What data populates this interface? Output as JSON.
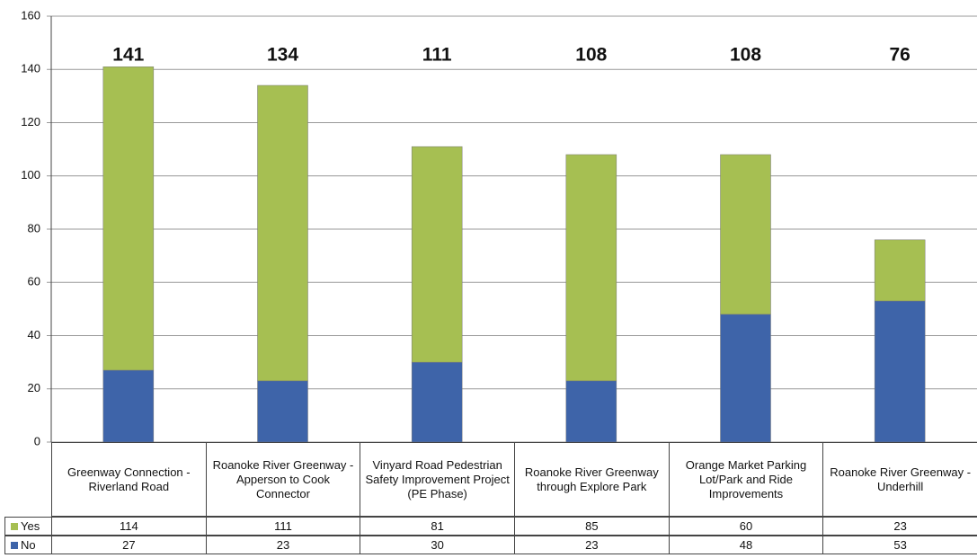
{
  "chart_data": {
    "type": "stacked_bar",
    "categories": [
      "Greenway Connection - Riverland Road",
      "Roanoke River Greenway - Apperson to Cook Connector",
      "Vinyard Road Pedestrian Safety Improvement Project (PE Phase)",
      "Roanoke River Greenway through Explore Park",
      "Orange Market Parking Lot/Park and Ride Improvements",
      "Roanoke River Greenway - Underhill"
    ],
    "series": [
      {
        "name": "No",
        "color": "#3e64a9",
        "values": [
          27,
          23,
          30,
          23,
          48,
          53
        ]
      },
      {
        "name": "Yes",
        "color": "#a6bf52",
        "values": [
          114,
          111,
          81,
          85,
          60,
          23
        ]
      }
    ],
    "totals": [
      141,
      134,
      111,
      108,
      108,
      76
    ],
    "ylim": [
      0,
      160
    ],
    "yticks": [
      0,
      20,
      40,
      60,
      80,
      100,
      120,
      140,
      160
    ],
    "grid": true
  }
}
